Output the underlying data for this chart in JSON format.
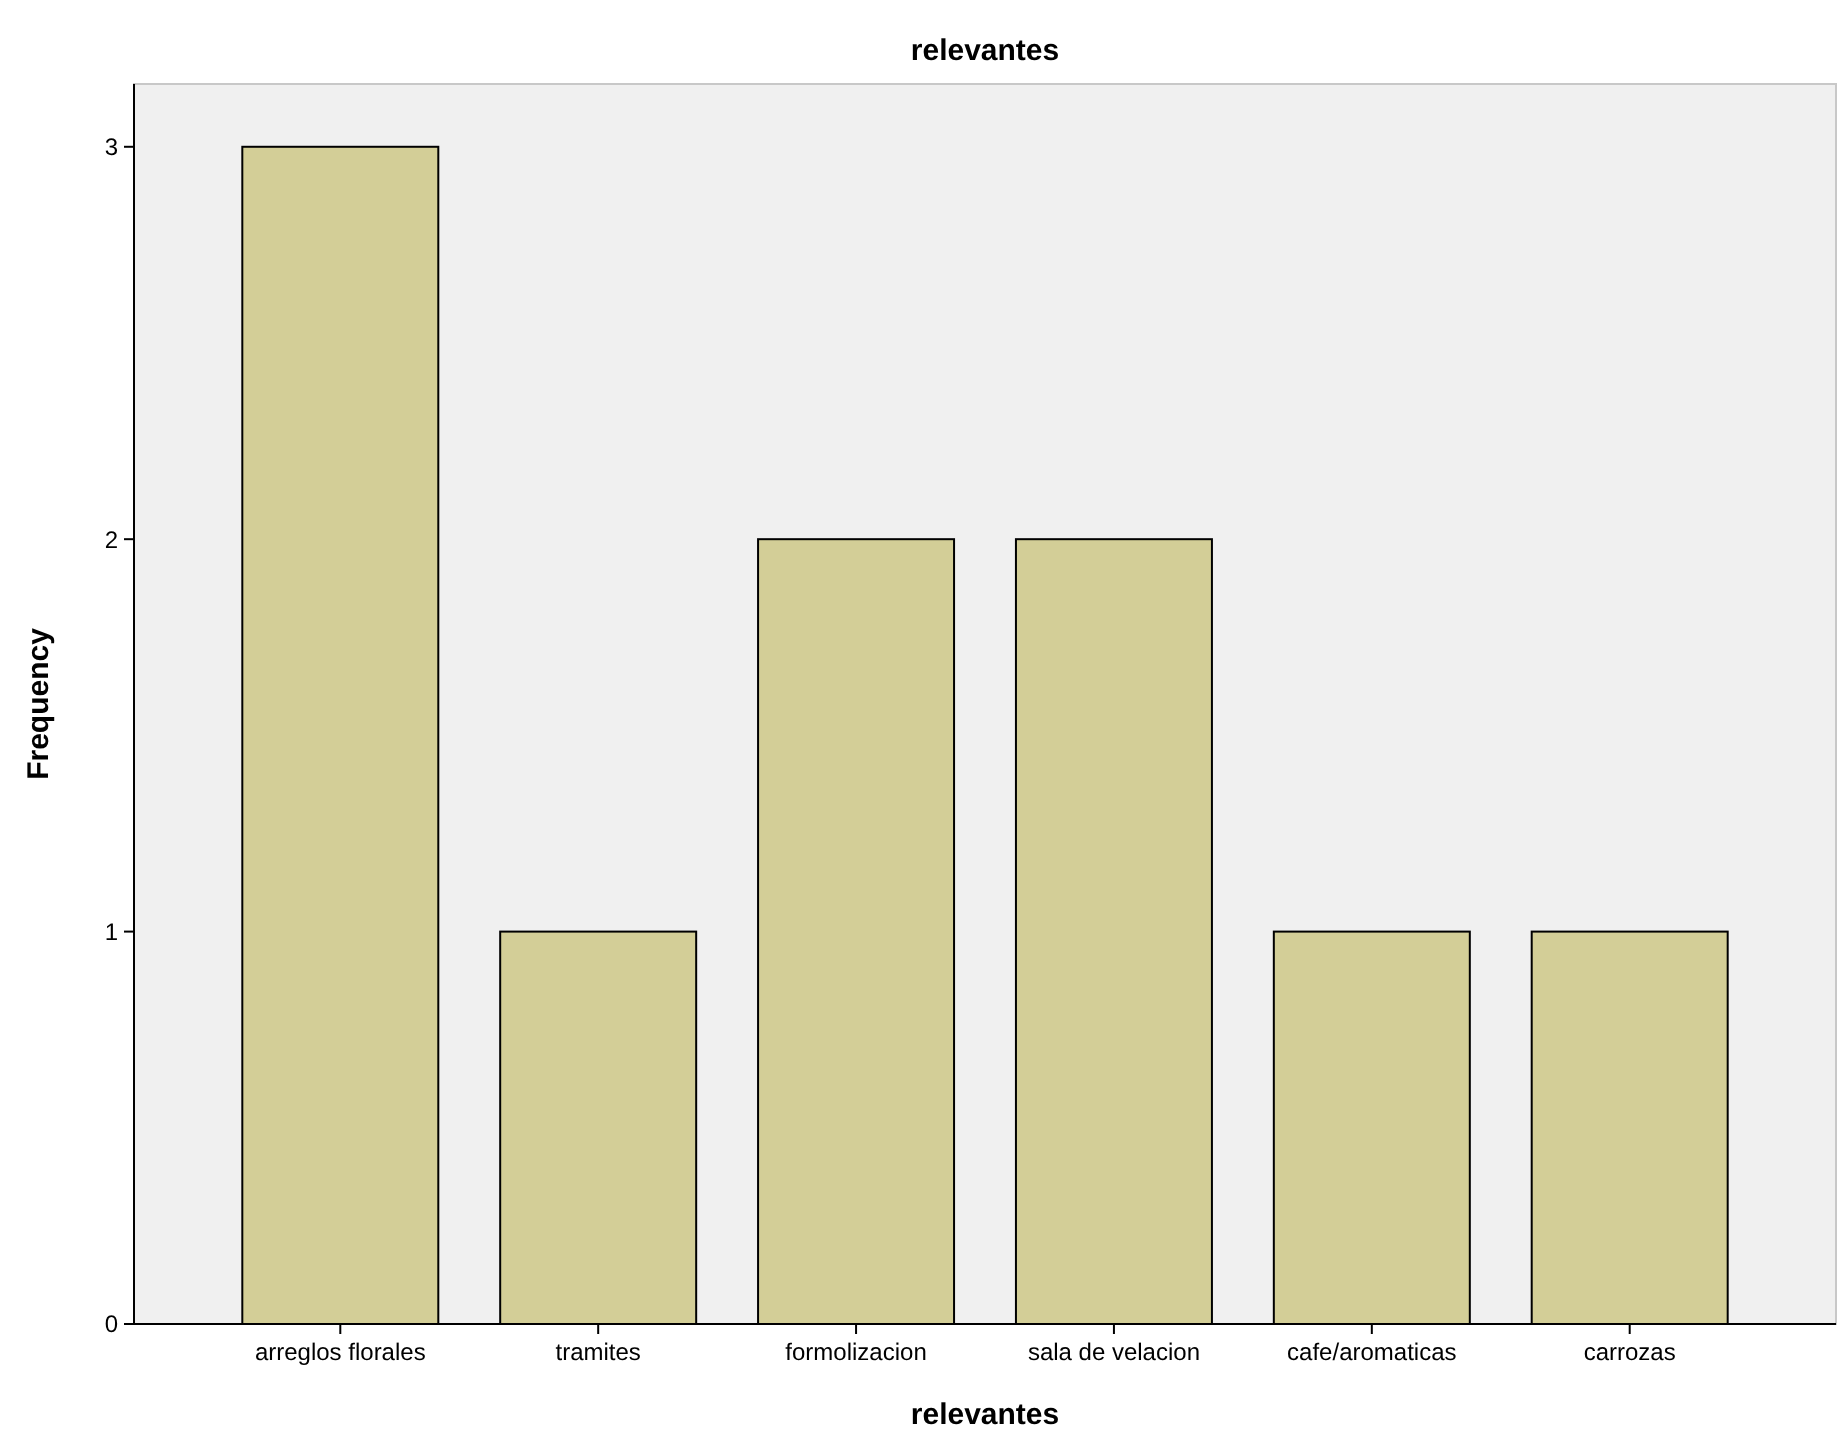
{
  "chart_data": {
    "type": "bar",
    "title": "relevantes",
    "xlabel": "relevantes",
    "ylabel": "Frequency",
    "categories": [
      "arreglos florales",
      "tramites",
      "formolizacion",
      "sala de velacion",
      "cafe/aromaticas",
      "carrozas"
    ],
    "values": [
      3,
      1,
      2,
      2,
      1,
      1
    ],
    "color": "#d3ce97",
    "ylim": [
      0,
      3.16
    ],
    "yticks": [
      0,
      1,
      2,
      3
    ],
    "grid": false
  }
}
